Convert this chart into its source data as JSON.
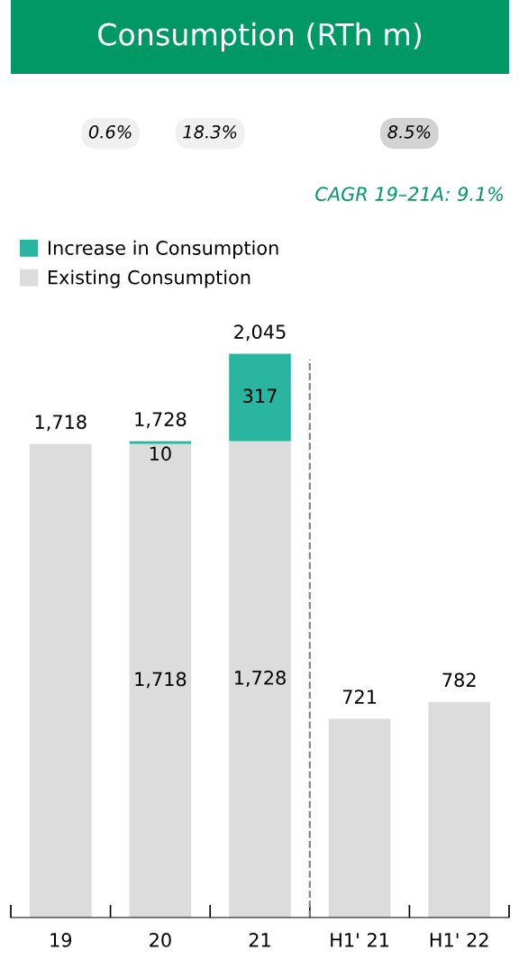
{
  "chart_data": {
    "type": "bar",
    "title": "Consumption (RTh m)",
    "categories": [
      "19",
      "20",
      "21",
      "H1' 21",
      "H1' 22"
    ],
    "stacked": true,
    "series": [
      {
        "name": "Existing Consumption",
        "color": "#dcdcdc",
        "values": [
          1718,
          1718,
          1728,
          721,
          782
        ],
        "value_labels": [
          null,
          "1,718",
          "1,728",
          null,
          null
        ]
      },
      {
        "name": "Increase in Consumption",
        "color": "#2ab5a0",
        "values": [
          null,
          10,
          317,
          null,
          null
        ],
        "value_labels": [
          null,
          "10",
          "317",
          null,
          null
        ]
      }
    ],
    "totals": [
      "1,718",
      "1,728",
      "2,045",
      "721",
      "782"
    ],
    "annotations": [
      "0.6%",
      "18.3%",
      "8.5%",
      "CAGR 19–21A: 9.1%"
    ],
    "legend": "top left",
    "grid": false,
    "tick_labels": "x"
  }
}
